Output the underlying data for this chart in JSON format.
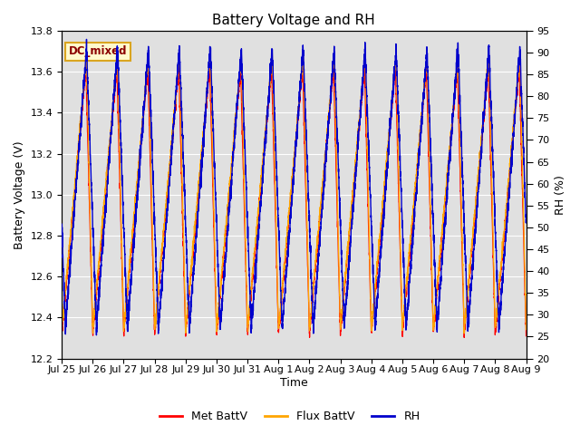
{
  "title": "Battery Voltage and RH",
  "xlabel": "Time",
  "ylabel_left": "Battery Voltage (V)",
  "ylabel_right": "RH (%)",
  "ylim_left": [
    12.2,
    13.8
  ],
  "ylim_right": [
    20,
    95
  ],
  "yticks_left": [
    12.2,
    12.4,
    12.6,
    12.8,
    13.0,
    13.2,
    13.4,
    13.6,
    13.8
  ],
  "yticks_right": [
    20,
    25,
    30,
    35,
    40,
    45,
    50,
    55,
    60,
    65,
    70,
    75,
    80,
    85,
    90,
    95
  ],
  "xtick_labels": [
    "Jul 25",
    "Jul 26",
    "Jul 27",
    "Jul 28",
    "Jul 29",
    "Jul 30",
    "Jul 31",
    "Aug 1",
    "Aug 2",
    "Aug 3",
    "Aug 4",
    "Aug 5",
    "Aug 6",
    "Aug 7",
    "Aug 8",
    "Aug 9"
  ],
  "annotation_text": "DC_mixed",
  "annotation_color": "#8B0000",
  "annotation_bg": "#FFFACD",
  "annotation_border": "#DAA520",
  "met_battv_color": "#FF0000",
  "flux_battv_color": "#FFA500",
  "rh_color": "#0000CC",
  "plot_bg_color": "#E0E0E0",
  "fig_bg_color": "#FFFFFF",
  "legend_labels": [
    "Met BattV",
    "Flux BattV",
    "RH"
  ],
  "n_days": 15,
  "v_min_met": 12.32,
  "v_max_met": 13.62,
  "v_min_flux": 12.34,
  "v_max_flux": 13.68,
  "rh_min": 27,
  "rh_max": 91,
  "title_fontsize": 11,
  "axis_label_fontsize": 9,
  "tick_fontsize": 8
}
